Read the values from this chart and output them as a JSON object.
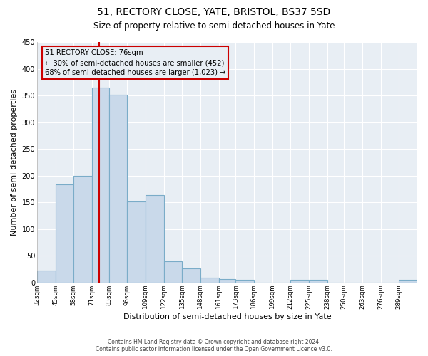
{
  "title": "51, RECTORY CLOSE, YATE, BRISTOL, BS37 5SD",
  "subtitle": "Size of property relative to semi-detached houses in Yate",
  "xlabel": "Distribution of semi-detached houses by size in Yate",
  "ylabel": "Number of semi-detached properties",
  "bin_edges": [
    32,
    45,
    58,
    71,
    83,
    96,
    109,
    122,
    135,
    148,
    161,
    173,
    186,
    199,
    212,
    225,
    238,
    250,
    263,
    276,
    289,
    302
  ],
  "bin_labels": [
    "32sqm",
    "45sqm",
    "58sqm",
    "71sqm",
    "83sqm",
    "96sqm",
    "109sqm",
    "122sqm",
    "135sqm",
    "148sqm",
    "161sqm",
    "173sqm",
    "186sqm",
    "199sqm",
    "212sqm",
    "225sqm",
    "238sqm",
    "250sqm",
    "263sqm",
    "276sqm",
    "289sqm"
  ],
  "counts": [
    22,
    183,
    200,
    365,
    352,
    152,
    163,
    40,
    26,
    9,
    6,
    5,
    0,
    0,
    5,
    5,
    0,
    0,
    0,
    0,
    5
  ],
  "bar_color": "#c9d9ea",
  "bar_edge_color": "#7aacc8",
  "property_line_x": 76,
  "property_line_color": "#cc0000",
  "annotation_title": "51 RECTORY CLOSE: 76sqm",
  "annotation_line1": "← 30% of semi-detached houses are smaller (452)",
  "annotation_line2": "68% of semi-detached houses are larger (1,023) →",
  "annotation_box_color": "#cc0000",
  "ylim": [
    0,
    450
  ],
  "background_color": "#ffffff",
  "plot_bg_color": "#e8eef4",
  "grid_color": "#ffffff",
  "footer_line1": "Contains HM Land Registry data © Crown copyright and database right 2024.",
  "footer_line2": "Contains public sector information licensed under the Open Government Licence v3.0."
}
